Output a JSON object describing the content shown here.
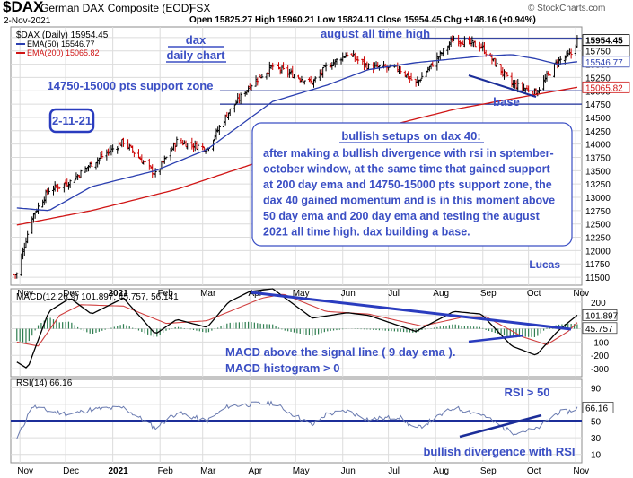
{
  "header": {
    "symbol": "$DAX",
    "name": "German DAX Composite (EOD)",
    "exchange": "FSX",
    "date": "2-Nov-2021",
    "watermark": "© StockCharts.com",
    "ohlc": "Open 15825.27  High 15960.21  Low 15824.11  Close 15954.45  Chg +148.16 (+0.94%)"
  },
  "legend": {
    "price": "$DAX (Daily) 15954.45",
    "ema50": "EMA(50) 15546.77",
    "ema200": "EMA(200) 15065.82"
  },
  "colors": {
    "background": "#ffffff",
    "grid": "#dcdcdc",
    "up_bar": "#000000",
    "down_bar": "#cc0000",
    "ema50": "#2b3fb0",
    "ema200": "#d01515",
    "annotation": "#3b4fc4",
    "macd_hist": "#2e7d4f",
    "rsi_line": "#6a7bb0"
  },
  "annotations": {
    "dax": "dax",
    "daily_chart": "daily chart",
    "ath": "august all time high",
    "support": "14750-15000 pts support zone",
    "date_box": "2-11-21",
    "base": "base",
    "bullish_title": "bullish setups on dax 40:",
    "bullish_body": [
      "after making a bullish divergence with rsi in sptember-",
      "october window, at the same time that gained support",
      "at 200 day ema and 14750-15000 pts support zone, the",
      "dax 40 gained momentum and is in this moment above",
      "50 day ema and 200 day ema and testing the august",
      "2021 all time high. dax building a base."
    ],
    "author": "Lucas",
    "macd_note1": "MACD above the signal line ( 9 day ema ).",
    "macd_note2": "MACD histogram > 0",
    "rsi_note": "RSI > 50",
    "rsi_div": "bullish divergence with RSI"
  },
  "chart_data": {
    "type": "candlestick",
    "x_ticks": [
      "Nov",
      "Dec",
      "2021",
      "Feb",
      "Mar",
      "Apr",
      "May",
      "Jun",
      "Jul",
      "Aug",
      "Sep",
      "Oct",
      "Nov"
    ],
    "y_ticks": [
      11500,
      11750,
      12000,
      12250,
      12500,
      12750,
      13000,
      13250,
      13500,
      13750,
      14000,
      14250,
      14500,
      14750,
      15000,
      15250,
      15500,
      15750,
      16000
    ],
    "ylim": [
      11350,
      16200
    ],
    "last_labels": {
      "close": "15954.45",
      "ema50": "15546.77",
      "ema200": "15065.82",
      "extra": "15750"
    },
    "price_anchors": [
      [
        "2020-10-30",
        11556
      ],
      [
        "2020-11-09",
        12640
      ],
      [
        "2020-11-20",
        13140
      ],
      [
        "2020-12-04",
        13290
      ],
      [
        "2020-12-18",
        13630
      ],
      [
        "2021-01-08",
        14050
      ],
      [
        "2021-01-29",
        13430
      ],
      [
        "2021-02-12",
        14050
      ],
      [
        "2021-03-04",
        13920
      ],
      [
        "2021-03-18",
        14600
      ],
      [
        "2021-04-01",
        15100
      ],
      [
        "2021-04-16",
        15460
      ],
      [
        "2021-05-12",
        15150
      ],
      [
        "2021-05-21",
        15440
      ],
      [
        "2021-06-04",
        15700
      ],
      [
        "2021-06-18",
        15450
      ],
      [
        "2021-07-08",
        15420
      ],
      [
        "2021-07-19",
        15130
      ],
      [
        "2021-08-13",
        15980
      ],
      [
        "2021-08-31",
        15830
      ],
      [
        "2021-09-20",
        15130
      ],
      [
        "2021-10-06",
        14970
      ],
      [
        "2021-10-20",
        15550
      ],
      [
        "2021-10-29",
        15690
      ],
      [
        "2021-11-02",
        15954
      ]
    ],
    "ema50_anchors": [
      [
        "2020-10-30",
        12800
      ],
      [
        "2020-11-20",
        12750
      ],
      [
        "2020-12-18",
        13200
      ],
      [
        "2021-01-29",
        13500
      ],
      [
        "2021-03-04",
        13900
      ],
      [
        "2021-04-16",
        14800
      ],
      [
        "2021-05-21",
        15100
      ],
      [
        "2021-06-18",
        15400
      ],
      [
        "2021-07-19",
        15530
      ],
      [
        "2021-08-31",
        15650
      ],
      [
        "2021-09-20",
        15680
      ],
      [
        "2021-10-06",
        15600
      ],
      [
        "2021-10-20",
        15500
      ],
      [
        "2021-11-02",
        15547
      ]
    ],
    "ema200_anchors": [
      [
        "2020-10-30",
        12480
      ],
      [
        "2020-12-18",
        12750
      ],
      [
        "2021-02-12",
        13150
      ],
      [
        "2021-04-16",
        13750
      ],
      [
        "2021-06-18",
        14250
      ],
      [
        "2021-08-13",
        14650
      ],
      [
        "2021-09-20",
        14850
      ],
      [
        "2021-11-02",
        15066
      ]
    ],
    "macd": {
      "label": "MACD(12,26,9) 101.897, 45.757, 56.141",
      "values": {
        "macd": 101.897,
        "signal": 45.757,
        "histogram": 56.141
      },
      "y_ticks": [
        200,
        100,
        0,
        -100,
        -200,
        -300
      ],
      "ylim": [
        -360,
        300
      ],
      "macd_anchors": [
        [
          "2020-10-30",
          -250
        ],
        [
          "2020-11-06",
          -300
        ],
        [
          "2020-11-20",
          130
        ],
        [
          "2020-12-04",
          230
        ],
        [
          "2020-12-18",
          110
        ],
        [
          "2021-01-08",
          230
        ],
        [
          "2021-01-29",
          -40
        ],
        [
          "2021-02-12",
          70
        ],
        [
          "2021-03-04",
          10
        ],
        [
          "2021-03-18",
          200
        ],
        [
          "2021-04-01",
          280
        ],
        [
          "2021-04-16",
          300
        ],
        [
          "2021-05-12",
          80
        ],
        [
          "2021-06-04",
          120
        ],
        [
          "2021-06-18",
          100
        ],
        [
          "2021-07-19",
          -20
        ],
        [
          "2021-08-13",
          130
        ],
        [
          "2021-08-31",
          110
        ],
        [
          "2021-09-20",
          -130
        ],
        [
          "2021-10-06",
          -200
        ],
        [
          "2021-10-20",
          -20
        ],
        [
          "2021-11-02",
          102
        ]
      ],
      "signal_anchors": [
        [
          "2020-10-30",
          -100
        ],
        [
          "2020-11-13",
          -130
        ],
        [
          "2020-11-27",
          100
        ],
        [
          "2020-12-11",
          180
        ],
        [
          "2021-01-08",
          170
        ],
        [
          "2021-02-05",
          40
        ],
        [
          "2021-03-04",
          60
        ],
        [
          "2021-04-09",
          230
        ],
        [
          "2021-04-23",
          260
        ],
        [
          "2021-05-21",
          130
        ],
        [
          "2021-06-18",
          110
        ],
        [
          "2021-07-23",
          20
        ],
        [
          "2021-08-20",
          90
        ],
        [
          "2021-09-03",
          90
        ],
        [
          "2021-09-27",
          -60
        ],
        [
          "2021-10-13",
          -120
        ],
        [
          "2021-10-27",
          -20
        ],
        [
          "2021-11-02",
          46
        ]
      ]
    },
    "rsi": {
      "label": "RSI(14) 66.16",
      "value": 66.16,
      "y_ticks": [
        90,
        70,
        50,
        30,
        10
      ],
      "ylim": [
        0,
        100
      ],
      "anchors": [
        [
          "2020-10-30",
          28
        ],
        [
          "2020-11-09",
          68
        ],
        [
          "2020-11-20",
          62
        ],
        [
          "2020-12-04",
          58
        ],
        [
          "2020-12-18",
          64
        ],
        [
          "2021-01-08",
          66
        ],
        [
          "2021-01-29",
          42
        ],
        [
          "2021-02-12",
          60
        ],
        [
          "2021-03-04",
          50
        ],
        [
          "2021-03-18",
          68
        ],
        [
          "2021-04-01",
          70
        ],
        [
          "2021-04-16",
          72
        ],
        [
          "2021-05-12",
          45
        ],
        [
          "2021-05-21",
          58
        ],
        [
          "2021-06-04",
          62
        ],
        [
          "2021-06-18",
          52
        ],
        [
          "2021-07-08",
          55
        ],
        [
          "2021-07-19",
          40
        ],
        [
          "2021-08-13",
          66
        ],
        [
          "2021-08-31",
          58
        ],
        [
          "2021-09-20",
          36
        ],
        [
          "2021-10-06",
          40
        ],
        [
          "2021-10-20",
          60
        ],
        [
          "2021-10-29",
          62
        ],
        [
          "2021-11-02",
          66
        ]
      ]
    },
    "support_zone": [
      14750,
      15000
    ],
    "ath_level": 15980
  }
}
